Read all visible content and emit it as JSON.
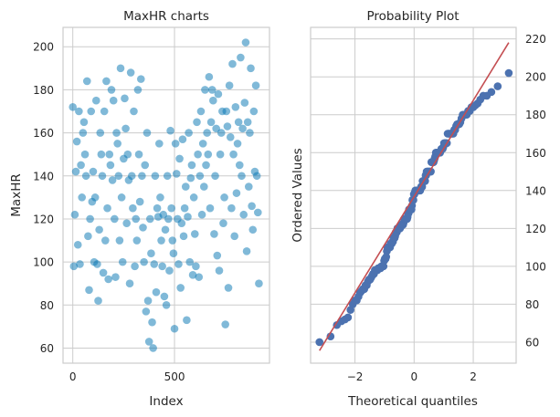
{
  "chart_data": [
    {
      "type": "scatter",
      "title": "MaxHR charts",
      "xlabel": "Index",
      "ylabel": "MaxHR",
      "xlim": [
        -48,
        967
      ],
      "ylim": [
        53,
        209
      ],
      "xticks": [
        0,
        500
      ],
      "yticks": [
        60,
        80,
        100,
        120,
        140,
        160,
        180,
        200
      ],
      "grid": true,
      "color": "#0173b2",
      "alpha": 0.5,
      "index_step": 5,
      "values": [
        172,
        98,
        122,
        142,
        156,
        108,
        170,
        99,
        145,
        130,
        160,
        165,
        150,
        140,
        184,
        112,
        87,
        120,
        170,
        128,
        142,
        100,
        130,
        175,
        99,
        82,
        115,
        160,
        150,
        140,
        95,
        170,
        110,
        184,
        125,
        92,
        150,
        145,
        180,
        138,
        175,
        120,
        93,
        160,
        155,
        140,
        110,
        190,
        130,
        100,
        148,
        176,
        162,
        118,
        150,
        138,
        90,
        188,
        140,
        125,
        170,
        98,
        120,
        110,
        180,
        150,
        128,
        185,
        140,
        116,
        100,
        145,
        77,
        160,
        82,
        63,
        120,
        104,
        72,
        60,
        99,
        140,
        86,
        125,
        121,
        155,
        130,
        110,
        98,
        122,
        84,
        115,
        80,
        140,
        120,
        96,
        161,
        125,
        110,
        104,
        69,
        155,
        141,
        120,
        99,
        148,
        88,
        118,
        157,
        112,
        125,
        135,
        73,
        121,
        160,
        100,
        139,
        145,
        94,
        130,
        113,
        98,
        165,
        150,
        93,
        140,
        170,
        122,
        155,
        135,
        180,
        145,
        160,
        150,
        186,
        125,
        165,
        180,
        175,
        113,
        140,
        162,
        103,
        178,
        96,
        150,
        160,
        170,
        118,
        130,
        71,
        170,
        163,
        88,
        182,
        158,
        125,
        192,
        150,
        112,
        172,
        132,
        155,
        165,
        145,
        195,
        140,
        162,
        122,
        174,
        202,
        105,
        165,
        135,
        160,
        190,
        126,
        115,
        170,
        142,
        182,
        140,
        123,
        90
      ]
    },
    {
      "type": "scatter",
      "title": "Probability Plot",
      "xlabel": "Theoretical quantiles",
      "ylabel": "Ordered Values",
      "xlim": [
        -3.5,
        3.45
      ],
      "ylim": [
        48.9,
        226.1
      ],
      "xticks": [
        -2,
        0,
        2
      ],
      "xtick_labels": [
        "−2",
        "0",
        "2"
      ],
      "yticks": [
        60,
        80,
        100,
        120,
        140,
        160,
        180,
        200,
        220
      ],
      "grid": true,
      "point_color": "#4c72b0",
      "line_color": "#c44e52",
      "fit_line": {
        "slope": 25.4,
        "intercept": 136.8,
        "x_range": [
          -3.2,
          3.2
        ]
      },
      "source": "ordered MaxHR values vs. normal theoretical quantiles"
    }
  ]
}
